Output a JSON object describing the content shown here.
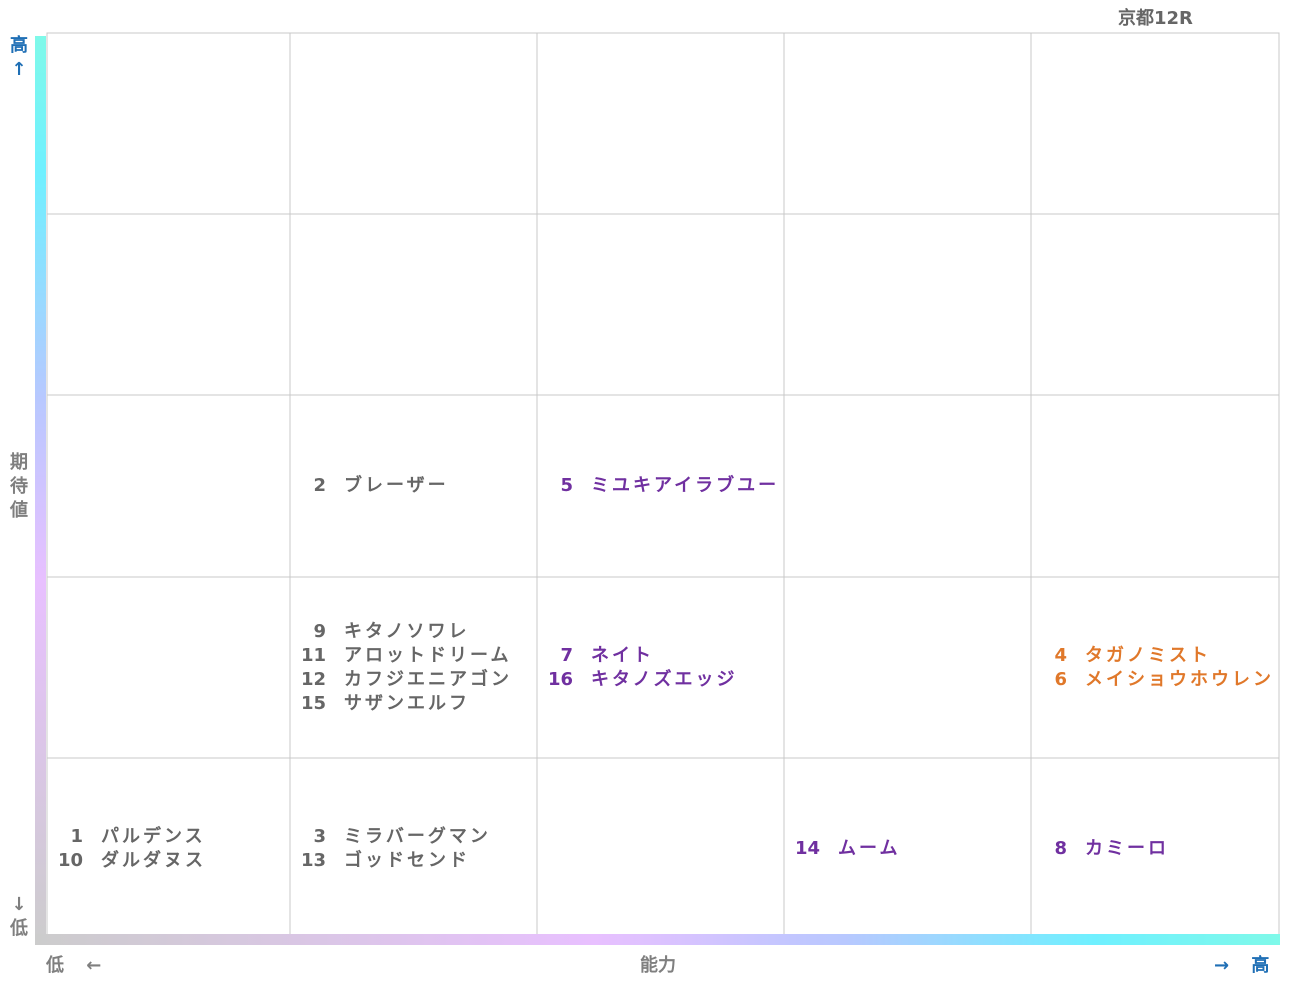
{
  "header": {
    "title": "京都12R"
  },
  "axes": {
    "y_high": "高↑",
    "y_label": "期待値",
    "y_low": "↓低",
    "x_low": "低 ←",
    "x_label": "能力",
    "x_high": "→ 高"
  },
  "grid": {
    "rows": [
      [
        [],
        [],
        [],
        [],
        []
      ],
      [
        [],
        [],
        [],
        [],
        []
      ],
      [
        [],
        [
          {
            "number": "2",
            "name": "ブレーザー",
            "color": "#666666"
          }
        ],
        [
          {
            "number": "5",
            "name": "ミユキアイラブユー",
            "color": "#7030a0"
          }
        ],
        [],
        []
      ],
      [
        [],
        [
          {
            "number": "9",
            "name": "キタノソワレ",
            "color": "#666666"
          },
          {
            "number": "11",
            "name": "アロットドリーム",
            "color": "#666666"
          },
          {
            "number": "12",
            "name": "カフジエニアゴン",
            "color": "#666666"
          },
          {
            "number": "15",
            "name": "サザンエルフ",
            "color": "#666666"
          }
        ],
        [
          {
            "number": "7",
            "name": "ネイト",
            "color": "#7030a0"
          },
          {
            "number": "16",
            "name": "キタノズエッジ",
            "color": "#7030a0"
          }
        ],
        [],
        [
          {
            "number": "4",
            "name": "タガノミスト",
            "color": "#e0782a"
          },
          {
            "number": "6",
            "name": "メイショウホウレン",
            "color": "#e0782a"
          }
        ]
      ],
      [
        [
          {
            "number": "1",
            "name": "パルデンス",
            "color": "#666666"
          },
          {
            "number": "10",
            "name": "ダルダヌス",
            "color": "#666666"
          }
        ],
        [
          {
            "number": "3",
            "name": "ミラバーグマン",
            "color": "#666666"
          },
          {
            "number": "13",
            "name": "ゴッドセンド",
            "color": "#666666"
          }
        ],
        [],
        [
          {
            "number": "14",
            "name": "ムーム",
            "color": "#7030a0"
          }
        ],
        [
          {
            "number": "8",
            "name": "カミーロ",
            "color": "#7030a0"
          }
        ]
      ]
    ]
  }
}
